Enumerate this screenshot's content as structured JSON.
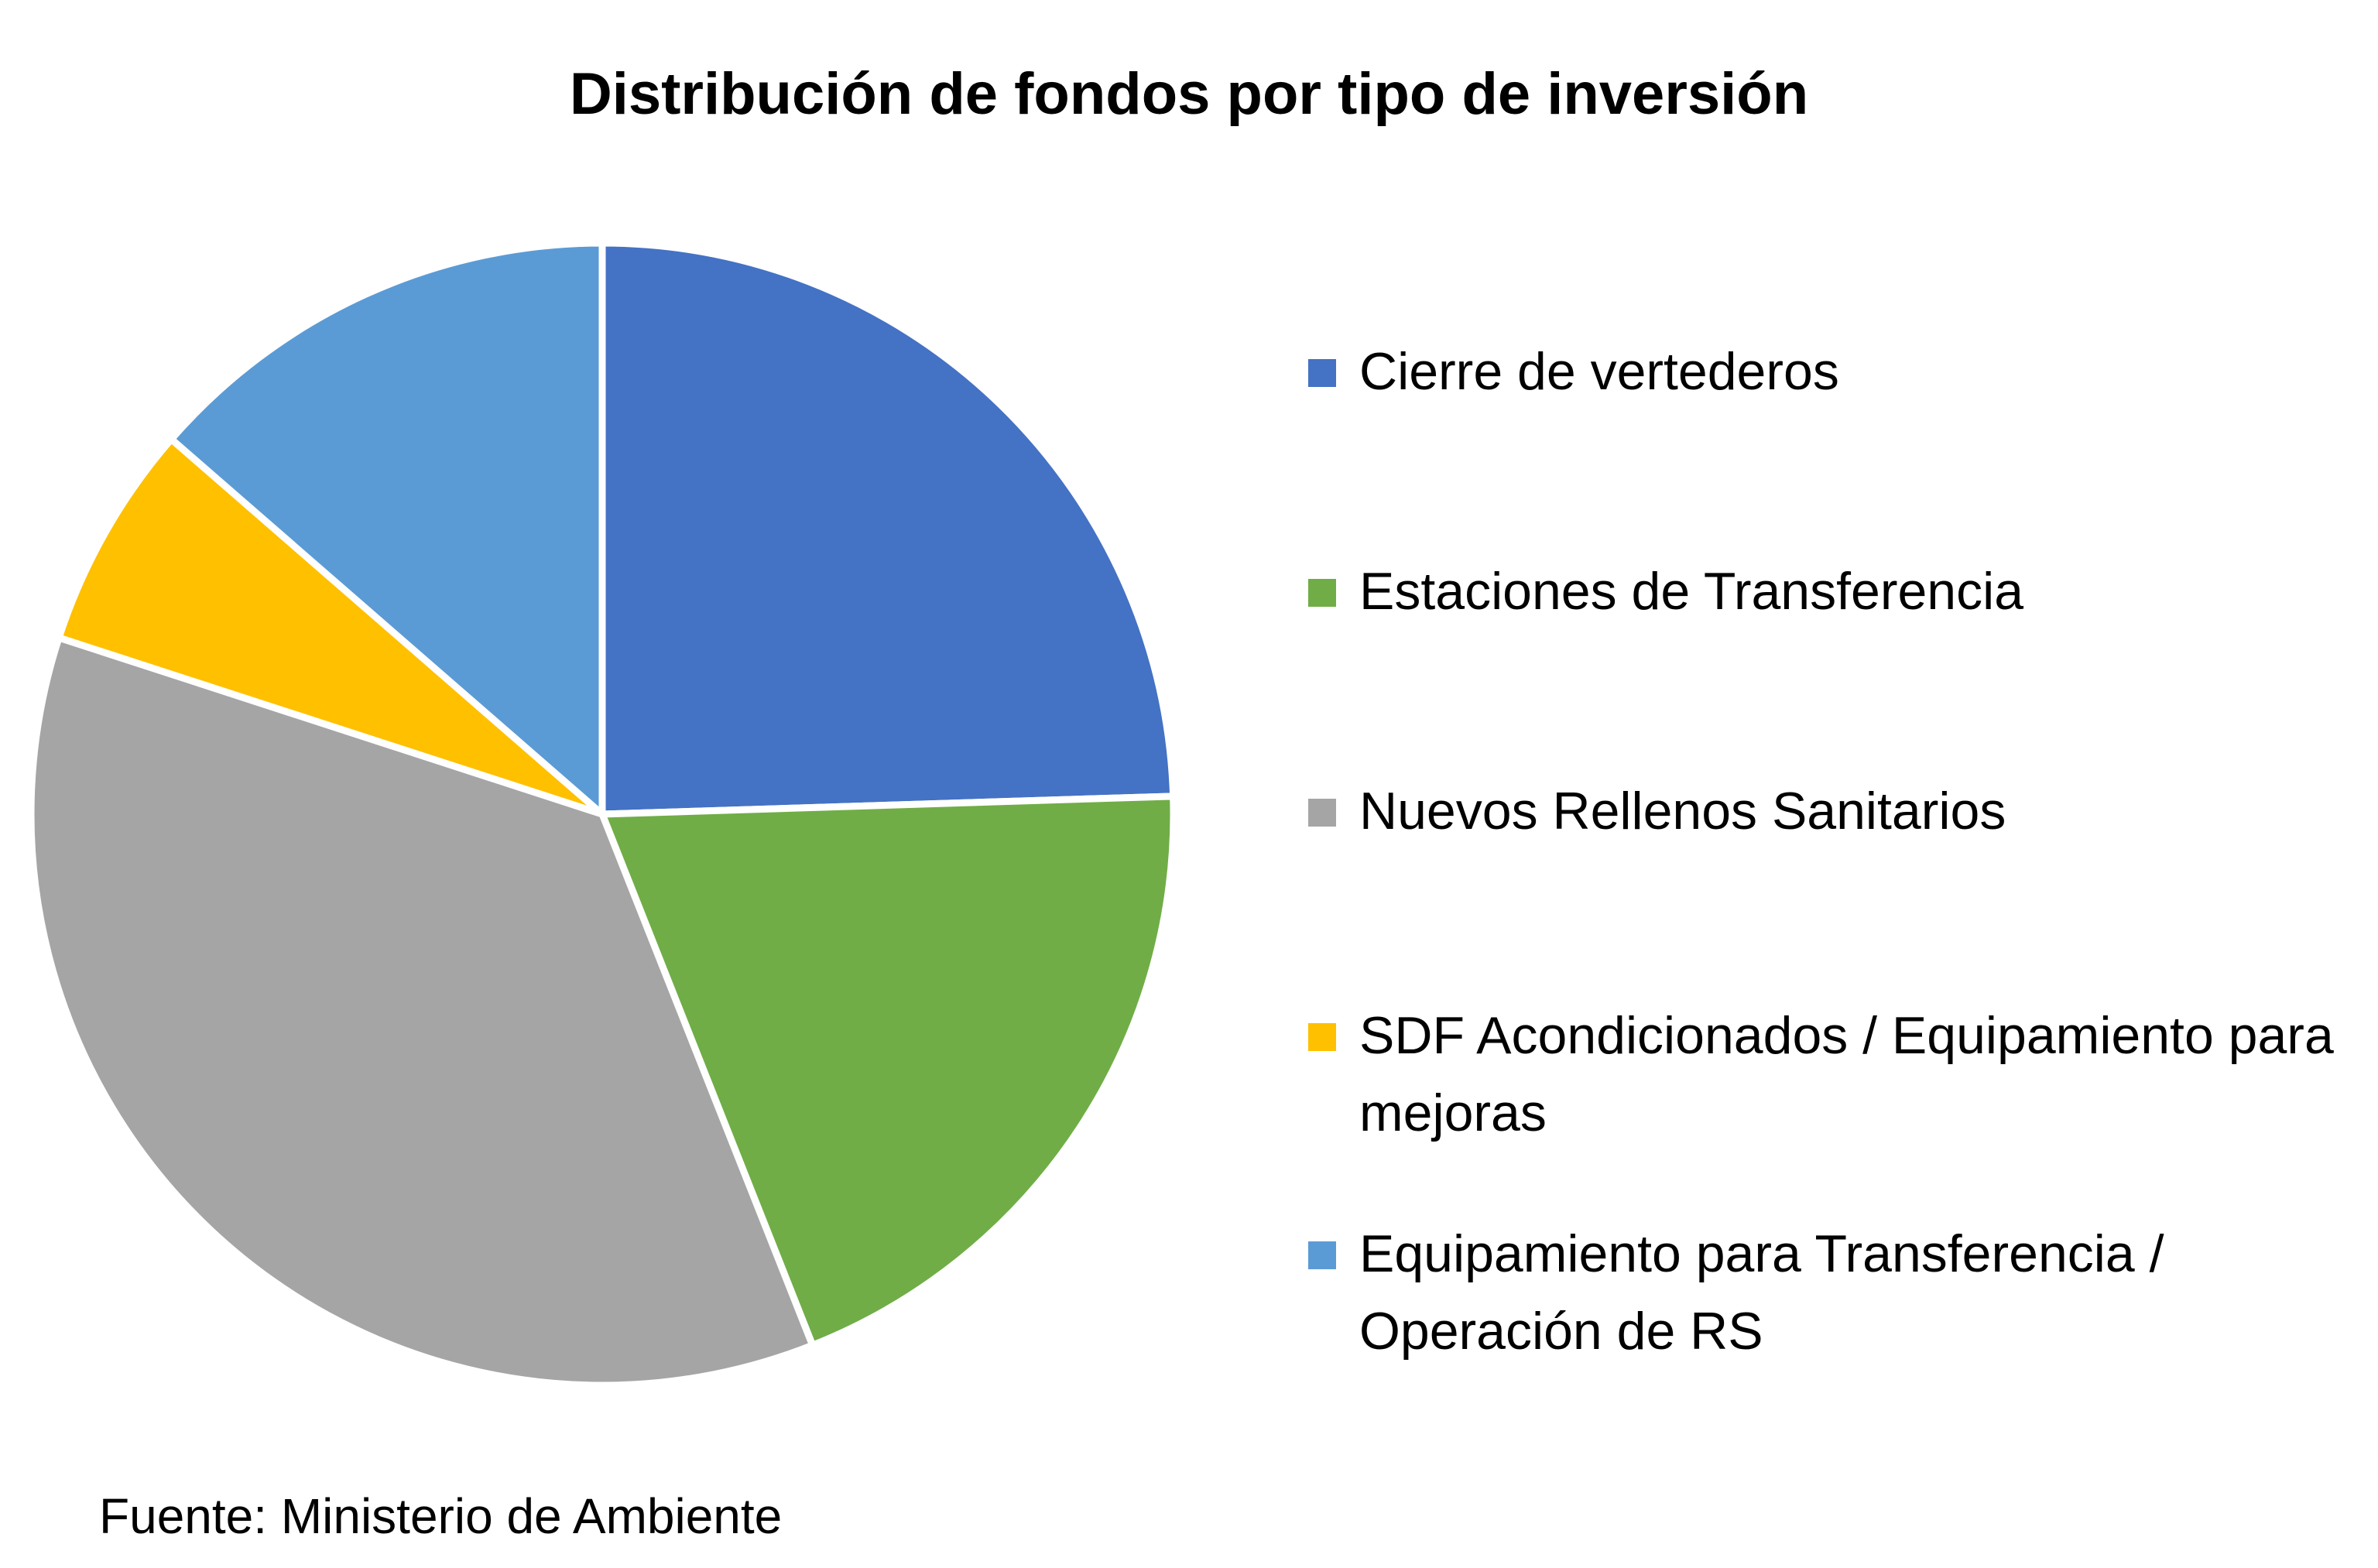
{
  "chart_data": {
    "type": "pie",
    "title": "Distribución de fondos por tipo de inversión",
    "categories": [
      "Cierre de vertederos",
      "Estaciones de Transferencia",
      "Nuevos Rellenos Sanitarios",
      "SDF Acondicionados / Equipamiento para mejoras",
      "Equipamiento para Transferencia / Operación de RS"
    ],
    "values": [
      24.5,
      19.5,
      36,
      6.4,
      13.6
    ],
    "colors": [
      "#4472C4",
      "#70AD47",
      "#A5A5A5",
      "#FFC000",
      "#5B9BD5"
    ],
    "legend_position": "right",
    "start_angle": "12 o'clock",
    "direction": "clockwise"
  },
  "source_note": "Fuente: Ministerio de Ambiente"
}
